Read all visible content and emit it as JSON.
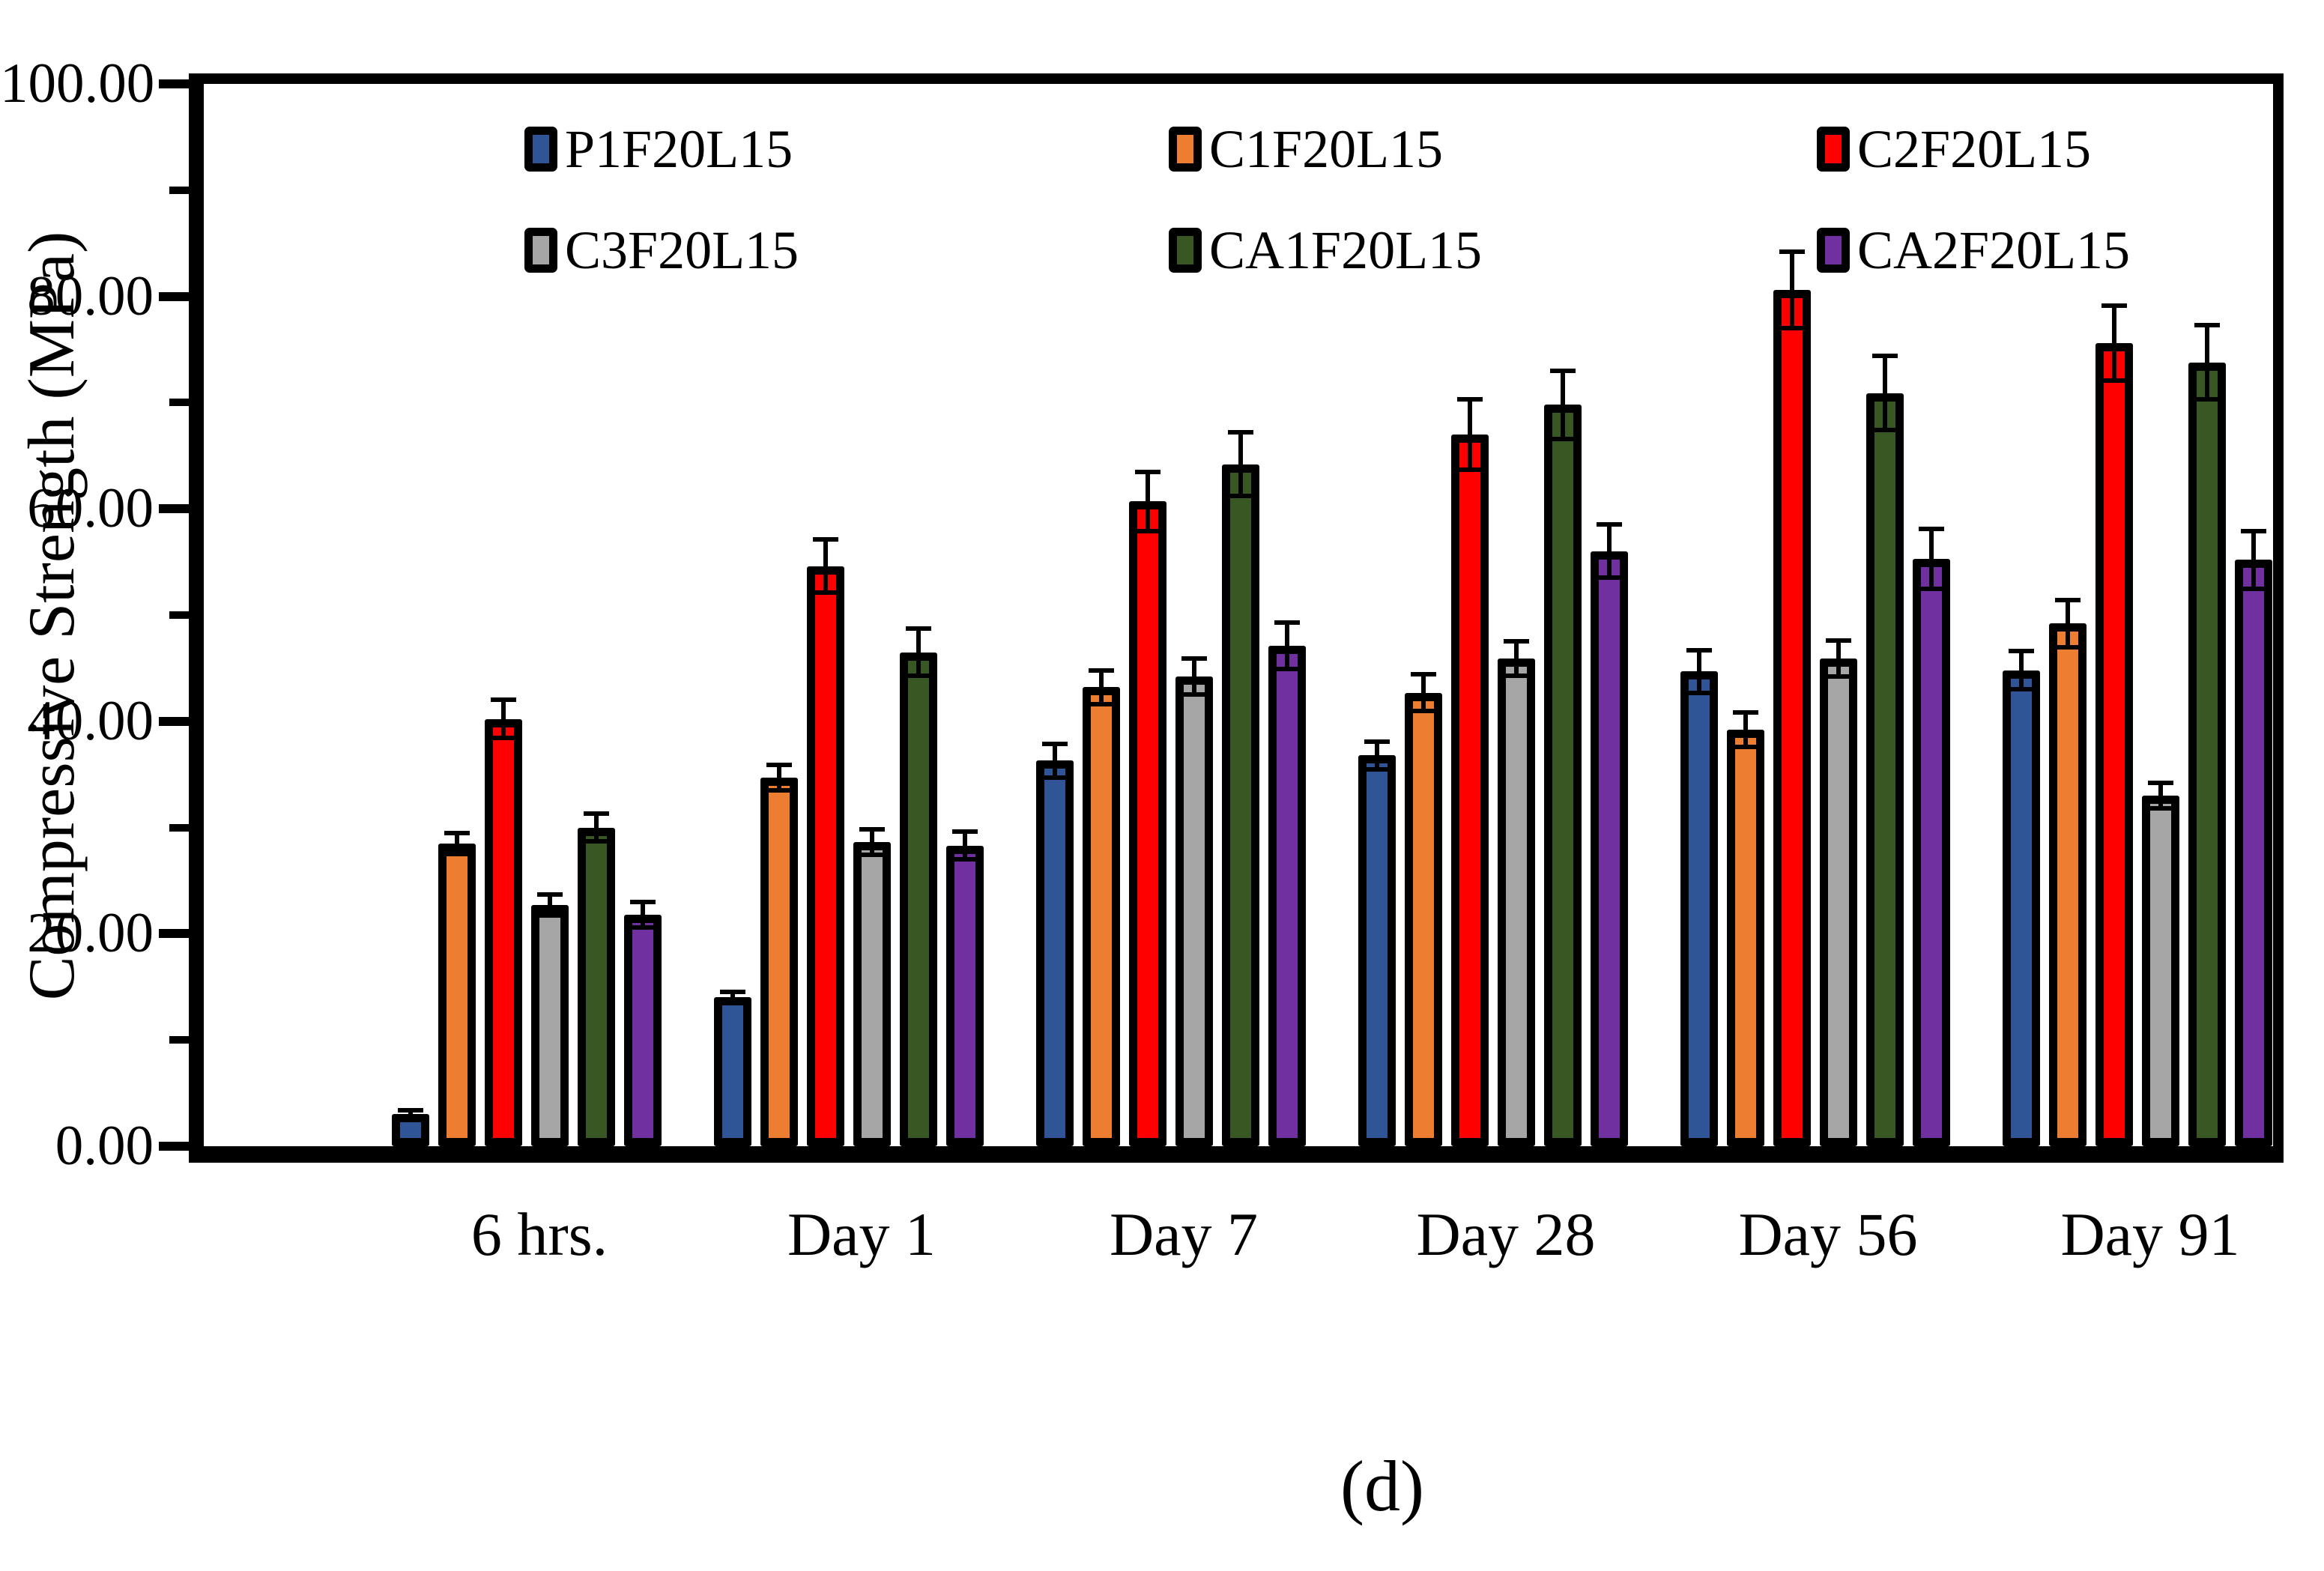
{
  "caption": "(d)",
  "chart_data": {
    "type": "bar",
    "title": "",
    "xlabel": "",
    "ylabel": "Compressive Strength (MPa)",
    "ylim": [
      0,
      100
    ],
    "grid": false,
    "legend_position": "top-inside",
    "error_bars": true,
    "y_ticks_major": [
      {
        "value": 0,
        "label": "0.00"
      },
      {
        "value": 20,
        "label": "20.00"
      },
      {
        "value": 40,
        "label": "40.00"
      },
      {
        "value": 60,
        "label": "60.00"
      },
      {
        "value": 80,
        "label": "80.00"
      },
      {
        "value": 100,
        "label": "100.00"
      }
    ],
    "y_ticks_minor": [
      10,
      30,
      50,
      70,
      90
    ],
    "categories": [
      "6 hrs.",
      "Day 1",
      "Day 7",
      "Day 28",
      "Day 56",
      "Day 91"
    ],
    "series": [
      {
        "name": "P1F20L15",
        "color": "#2F5597",
        "values": [
          3.0,
          14.0,
          36.3,
          36.8,
          44.7,
          44.8
        ],
        "errors": [
          0.4,
          0.5,
          1.6,
          1.3,
          2.0,
          1.8
        ]
      },
      {
        "name": "C1F20L15",
        "color": "#ED7D31",
        "values": [
          28.5,
          34.7,
          43.2,
          42.7,
          39.2,
          49.2
        ],
        "errors": [
          1.0,
          1.2,
          1.6,
          1.7,
          1.6,
          2.2
        ]
      },
      {
        "name": "C2F20L15",
        "color": "#FF0000",
        "values": [
          40.2,
          54.6,
          60.7,
          67.0,
          80.6,
          75.6
        ],
        "errors": [
          1.8,
          2.5,
          2.8,
          3.3,
          3.6,
          3.5
        ]
      },
      {
        "name": "C3F20L15",
        "color": "#A6A6A6",
        "values": [
          22.7,
          28.6,
          44.2,
          45.9,
          45.9,
          33.0
        ],
        "errors": [
          1.0,
          1.2,
          1.7,
          1.6,
          1.7,
          1.2
        ]
      },
      {
        "name": "CA1F20L15",
        "color": "#385723",
        "values": [
          30.0,
          46.5,
          64.2,
          69.8,
          70.9,
          73.8
        ],
        "errors": [
          1.3,
          2.2,
          3.0,
          3.2,
          3.5,
          3.5
        ]
      },
      {
        "name": "CA2F20L15",
        "color": "#7030A0",
        "values": [
          21.8,
          28.3,
          47.1,
          56.0,
          55.3,
          55.2
        ],
        "errors": [
          1.2,
          1.3,
          2.2,
          2.5,
          2.8,
          2.7
        ]
      }
    ]
  }
}
